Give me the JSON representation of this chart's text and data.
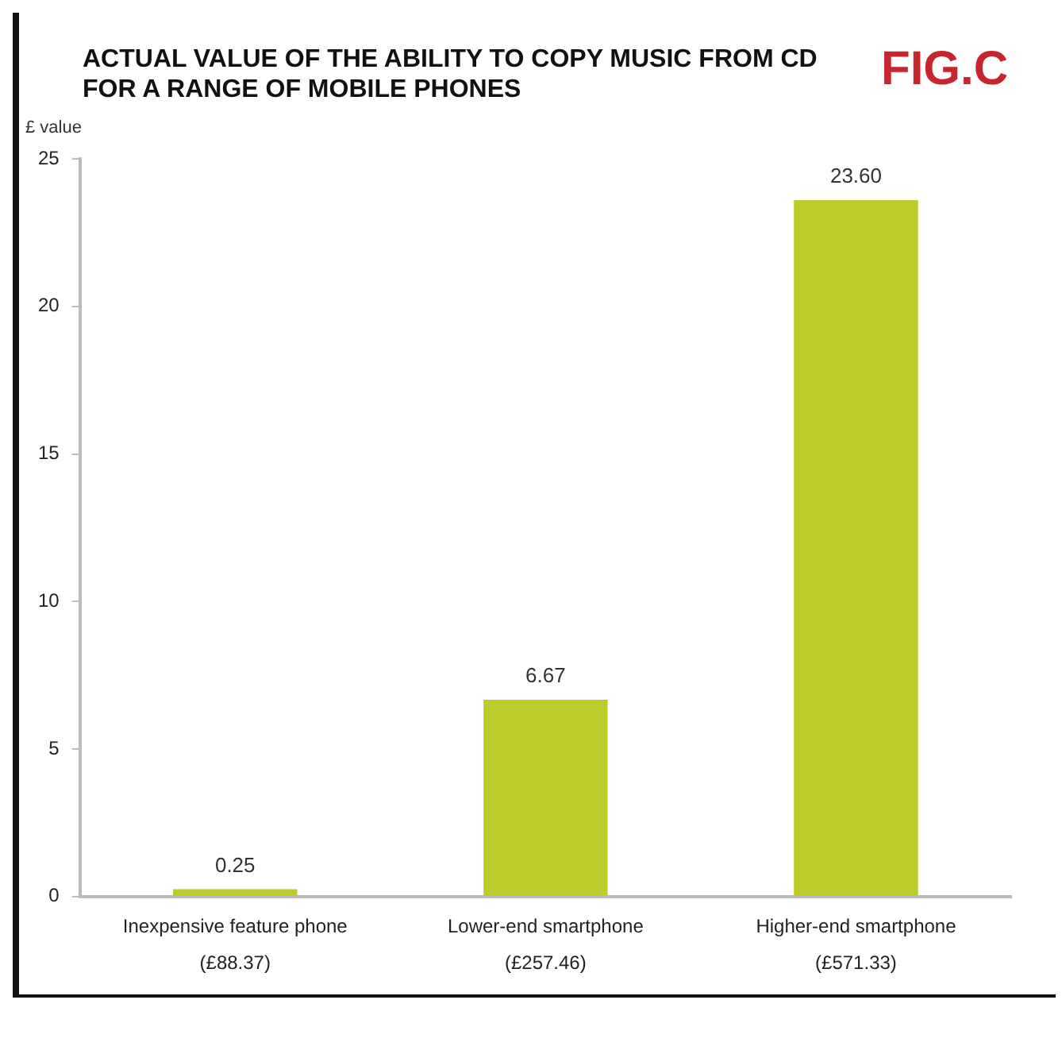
{
  "chart_data": {
    "type": "bar",
    "title": "ACTUAL VALUE OF THE ABILITY TO COPY MUSIC FROM CD\nFOR A RANGE OF MOBILE PHONES",
    "annotations": [
      "FIG.C"
    ],
    "ylabel": "£ value",
    "categories": [
      "Inexpensive feature phone\n(£88.37)",
      "Lower-end smartphone\n(£257.46)",
      "Higher-end smartphone\n(£571.33)"
    ],
    "values": [
      0.25,
      6.67,
      23.6
    ],
    "value_labels": [
      "0.25",
      "6.67",
      "23.60"
    ],
    "color": "#bdcc2a",
    "ylim": [
      0,
      25
    ],
    "yticks": [
      0,
      5,
      10,
      15,
      20,
      25
    ],
    "grid": false,
    "legend": false
  }
}
